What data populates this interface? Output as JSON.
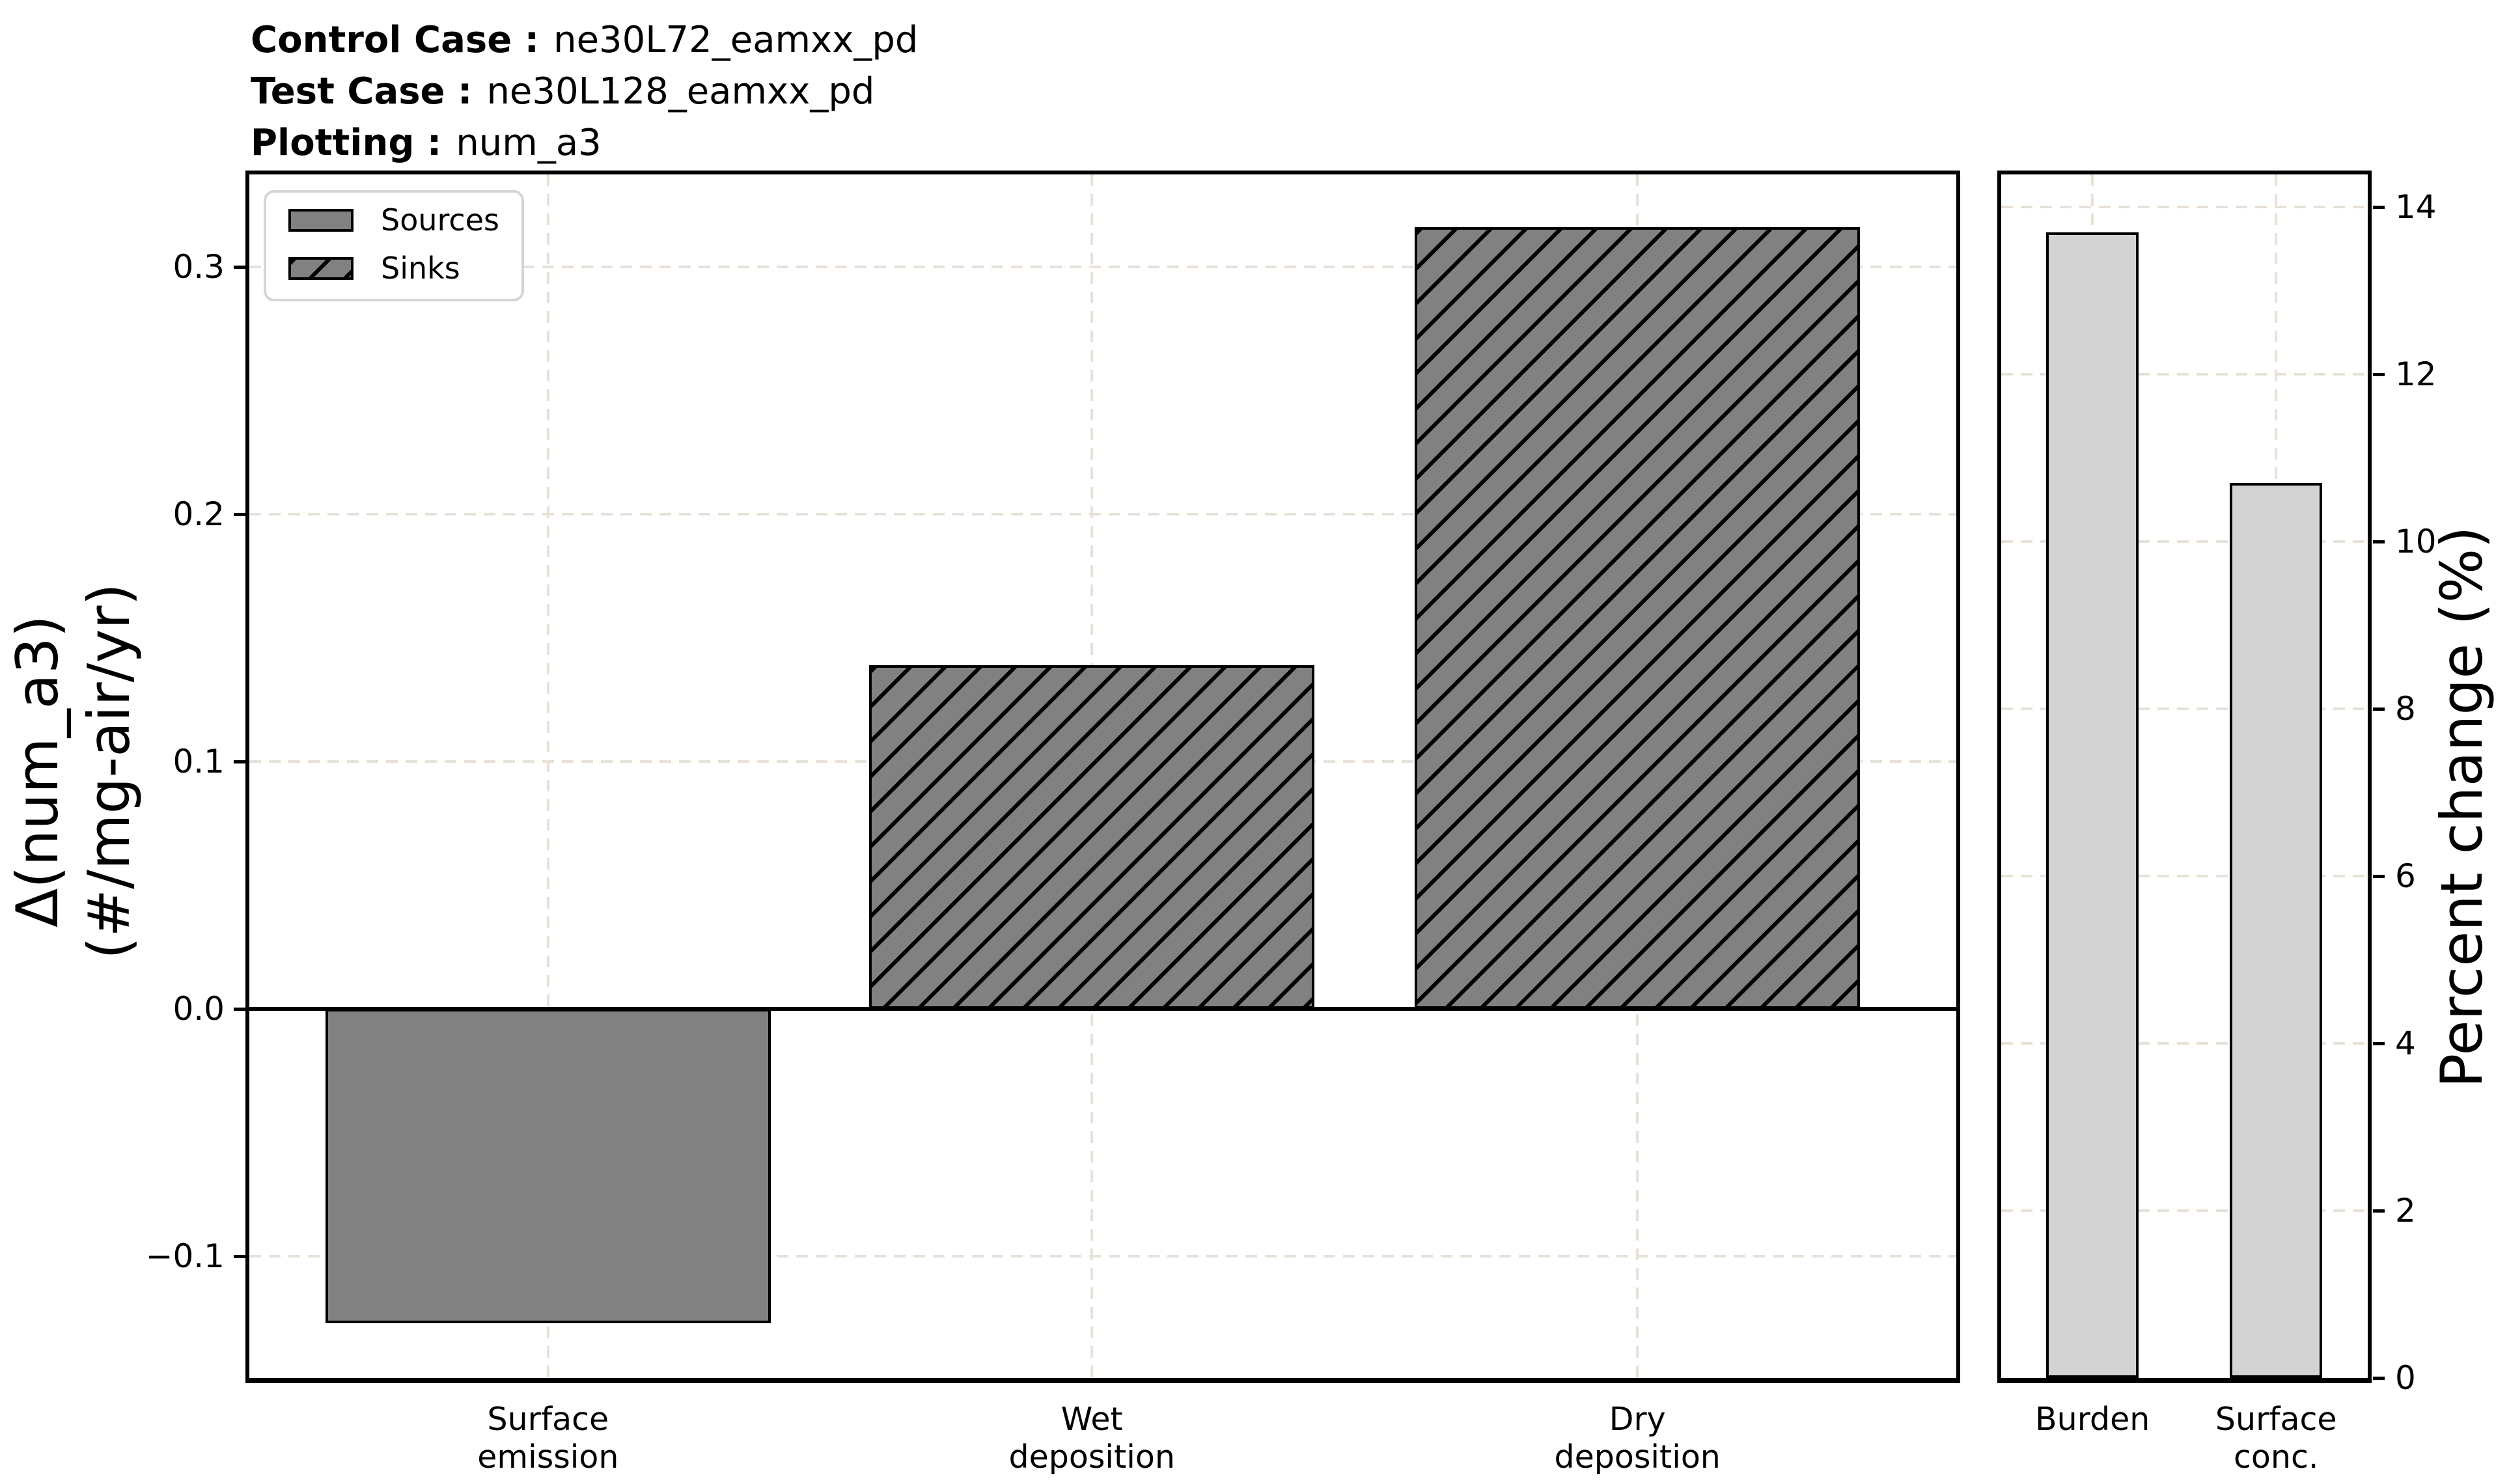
{
  "header": {
    "rows": [
      {
        "label": "Control Case :",
        "value": "ne30L72_eamxx_pd"
      },
      {
        "label": "Test Case :",
        "value": "ne30L128_eamxx_pd"
      },
      {
        "label": "Plotting :",
        "value": "num_a3"
      }
    ]
  },
  "colors": {
    "bar_gray": "#818181",
    "bar_lightgray": "#d3d3d3",
    "bar_edge": "#000000",
    "grid": "#e8e1d8",
    "zero_line": "#000000",
    "legend_border": "#d5d5d5",
    "text": "#000000",
    "background": "#ffffff"
  },
  "chart_data": [
    {
      "type": "bar",
      "name": "budget-terms",
      "ylabel": [
        "Δ(num_a3)",
        "(#/mg-air/yr)"
      ],
      "categories": [
        "Surface\nemission",
        "Wet\ndeposition",
        "Dry\ndeposition"
      ],
      "values": [
        -0.127,
        0.139,
        0.316
      ],
      "bar_styles": [
        "solid",
        "hatched",
        "hatched"
      ],
      "yticks": [
        0.3,
        0.2,
        0.1,
        0.0,
        -0.1
      ],
      "ytick_labels": [
        "0.3",
        "0.2",
        "0.1",
        "0.0",
        "−0.1"
      ],
      "ylim": [
        -0.1492,
        0.3374
      ],
      "grid": true,
      "zero_line": true,
      "legend": {
        "position": "upper left",
        "items": [
          {
            "label": "Sources",
            "style": "solid"
          },
          {
            "label": "Sinks",
            "style": "hatched"
          }
        ]
      }
    },
    {
      "type": "bar",
      "name": "percent-change",
      "ylabel": "Percent change (%)",
      "yaxis_side": "right",
      "categories": [
        "Burden",
        "Surface\nconc."
      ],
      "values": [
        13.7,
        10.7
      ],
      "bar_styles": [
        "light",
        "light"
      ],
      "yticks": [
        0,
        2,
        4,
        6,
        8,
        10,
        12,
        14
      ],
      "ytick_labels": [
        "0",
        "2",
        "4",
        "6",
        "8",
        "10",
        "12",
        "14"
      ],
      "ylim": [
        0,
        14.39
      ],
      "grid": true
    }
  ]
}
